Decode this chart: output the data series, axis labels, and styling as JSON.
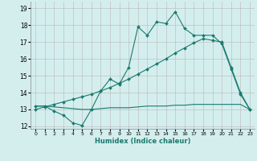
{
  "title": "",
  "xlabel": "Humidex (Indice chaleur)",
  "x_values": [
    0,
    1,
    2,
    3,
    4,
    5,
    6,
    7,
    8,
    9,
    10,
    11,
    12,
    13,
    14,
    15,
    16,
    17,
    18,
    19,
    20,
    21,
    22,
    23
  ],
  "line1_y": [
    13.2,
    13.2,
    12.9,
    12.65,
    12.2,
    12.05,
    13.0,
    14.1,
    14.8,
    14.5,
    15.5,
    17.9,
    17.4,
    18.2,
    18.1,
    18.8,
    17.8,
    17.4,
    17.4,
    17.4,
    16.9,
    15.4,
    13.9,
    13.0
  ],
  "line2_y": [
    13.2,
    13.2,
    13.15,
    13.1,
    13.05,
    13.0,
    13.0,
    13.05,
    13.1,
    13.1,
    13.1,
    13.15,
    13.2,
    13.2,
    13.2,
    13.25,
    13.25,
    13.3,
    13.3,
    13.3,
    13.3,
    13.3,
    13.3,
    13.0
  ],
  "line3_y": [
    13.0,
    13.15,
    13.3,
    13.45,
    13.6,
    13.75,
    13.9,
    14.1,
    14.3,
    14.55,
    14.8,
    15.1,
    15.4,
    15.7,
    16.0,
    16.35,
    16.65,
    16.95,
    17.2,
    17.1,
    17.0,
    15.5,
    14.0,
    13.0
  ],
  "ylim": [
    11.85,
    19.4
  ],
  "yticks": [
    12,
    13,
    14,
    15,
    16,
    17,
    18,
    19
  ],
  "xticks": [
    0,
    1,
    2,
    3,
    4,
    5,
    6,
    7,
    8,
    9,
    10,
    11,
    12,
    13,
    14,
    15,
    16,
    17,
    18,
    19,
    20,
    21,
    22,
    23
  ],
  "line_color": "#1a7a6e",
  "bg_color": "#d4eeee",
  "grid_color": "#b8b8b8",
  "marker": "D",
  "marker_size": 2.0,
  "linewidth": 0.8
}
